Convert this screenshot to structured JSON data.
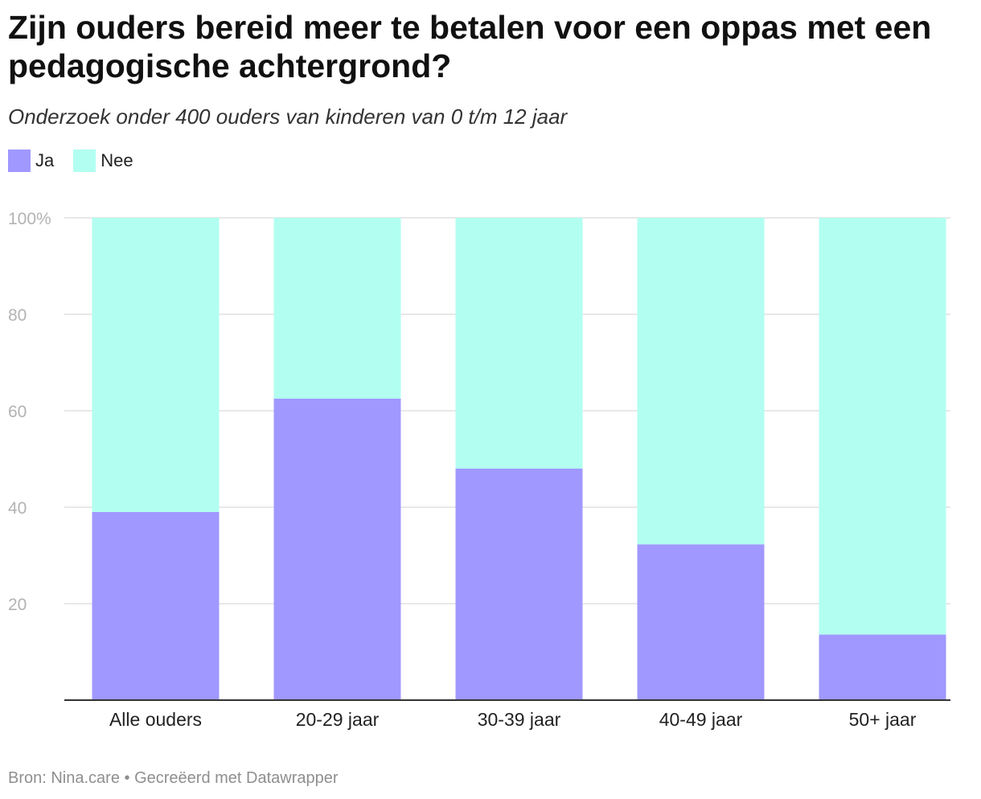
{
  "chart_data": {
    "type": "bar",
    "stacked": true,
    "title": "Zijn ouders bereid meer te betalen voor een oppas met een pedagogische achtergrond?",
    "subtitle": "Onderzoek onder 400 ouders van kinderen van 0 t/m 12 jaar",
    "categories": [
      "Alle ouders",
      "20-29 jaar",
      "30-39 jaar",
      "40-49 jaar",
      "50+ jaar"
    ],
    "series": [
      {
        "name": "Ja",
        "color": "#a098ff",
        "values": [
          39,
          62.5,
          48,
          32.3,
          13.6
        ]
      },
      {
        "name": "Nee",
        "color": "#b2fff1",
        "values": [
          61,
          37.5,
          52,
          67.7,
          86.4
        ]
      }
    ],
    "y_ticks": [
      {
        "value": 20,
        "label": "20"
      },
      {
        "value": 40,
        "label": "40"
      },
      {
        "value": 60,
        "label": "60"
      },
      {
        "value": 80,
        "label": "80"
      },
      {
        "value": 100,
        "label": "100%"
      }
    ],
    "ylim": [
      0,
      100
    ],
    "xlabel": "",
    "ylabel": "",
    "grid": true,
    "legend_position": "top-left",
    "source": "Bron: Nina.care • Gecreëerd met Datawrapper"
  }
}
